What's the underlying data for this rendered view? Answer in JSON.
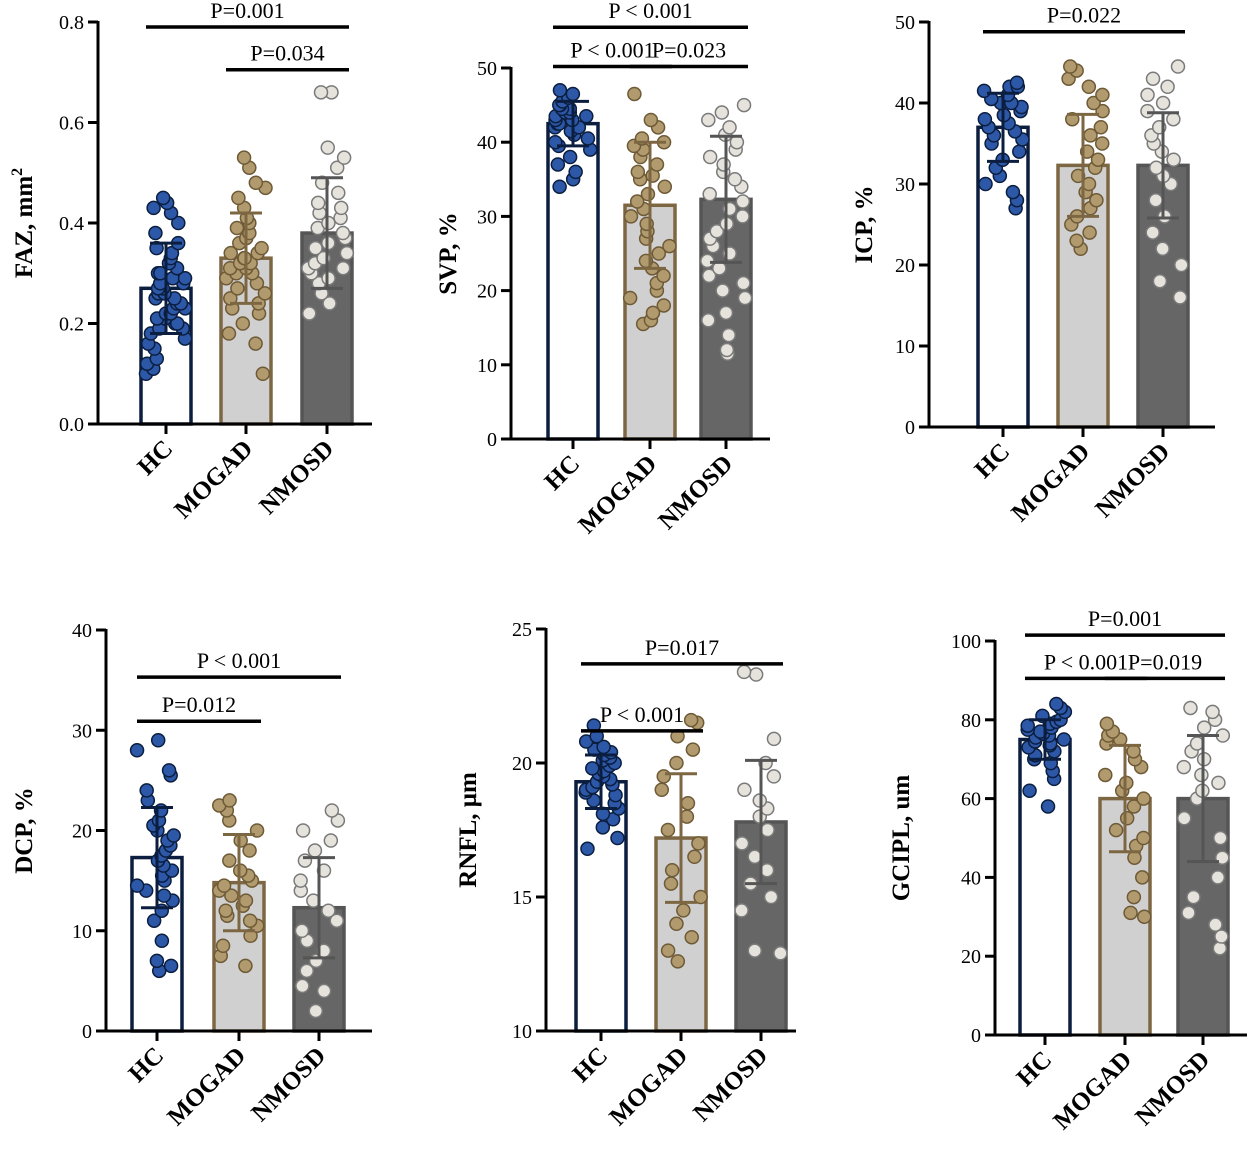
{
  "chart_data": [
    {
      "type": "bar",
      "ylabel": "FAZ, mm",
      "ylabel_sup": "2",
      "categories": [
        "HC",
        "MOGAD",
        "NMOSD"
      ],
      "ylim": [
        0,
        0.8
      ],
      "yticks": [
        0.0,
        0.2,
        0.4,
        0.6,
        0.8
      ],
      "ytick_labels": [
        "0.0",
        "0.2",
        "0.4",
        "0.6",
        "0.8"
      ],
      "means": [
        0.27,
        0.33,
        0.38
      ],
      "sd": [
        0.09,
        0.09,
        0.11
      ],
      "points": [
        [
          0.1,
          0.11,
          0.12,
          0.13,
          0.15,
          0.16,
          0.17,
          0.18,
          0.19,
          0.19,
          0.2,
          0.2,
          0.21,
          0.21,
          0.22,
          0.22,
          0.23,
          0.23,
          0.24,
          0.24,
          0.25,
          0.25,
          0.26,
          0.26,
          0.27,
          0.27,
          0.28,
          0.28,
          0.29,
          0.29,
          0.3,
          0.3,
          0.31,
          0.32,
          0.33,
          0.34,
          0.35,
          0.36,
          0.38,
          0.4,
          0.42,
          0.43,
          0.44,
          0.45
        ],
        [
          0.1,
          0.16,
          0.18,
          0.2,
          0.22,
          0.23,
          0.24,
          0.25,
          0.26,
          0.27,
          0.28,
          0.29,
          0.3,
          0.3,
          0.31,
          0.31,
          0.32,
          0.32,
          0.33,
          0.33,
          0.34,
          0.34,
          0.35,
          0.36,
          0.37,
          0.38,
          0.39,
          0.4,
          0.41,
          0.43,
          0.45,
          0.47,
          0.48,
          0.51,
          0.53
        ],
        [
          0.22,
          0.24,
          0.26,
          0.28,
          0.29,
          0.3,
          0.31,
          0.31,
          0.32,
          0.33,
          0.34,
          0.35,
          0.36,
          0.37,
          0.38,
          0.39,
          0.4,
          0.41,
          0.42,
          0.43,
          0.44,
          0.46,
          0.48,
          0.51,
          0.53,
          0.55,
          0.66,
          0.66
        ]
      ],
      "comparisons": [
        {
          "from": 0,
          "to": 2,
          "y": 0.79,
          "label": "P=0.001"
        },
        {
          "from": 1,
          "to": 2,
          "y": 0.705,
          "label": "P=0.034"
        }
      ]
    },
    {
      "type": "bar",
      "ylabel": "SVP, %",
      "categories": [
        "HC",
        "MOGAD",
        "NMOSD"
      ],
      "ylim": [
        0,
        50
      ],
      "yticks": [
        0,
        10,
        20,
        30,
        40,
        50
      ],
      "ytick_labels": [
        "0",
        "10",
        "20",
        "30",
        "40",
        "50"
      ],
      "means": [
        42.5,
        31.5,
        32.3
      ],
      "sd": [
        3.0,
        8.5,
        8.5
      ],
      "points": [
        [
          34.0,
          35.0,
          36.0,
          37.0,
          38.0,
          39.0,
          39.5,
          40.0,
          40.5,
          41.0,
          41.5,
          42.0,
          42.0,
          42.5,
          42.5,
          43.0,
          43.0,
          43.5,
          43.5,
          44.0,
          44.0,
          44.5,
          44.5,
          45.0,
          45.0,
          45.5,
          46.0,
          46.5,
          47.0
        ],
        [
          15.5,
          16.0,
          17.0,
          18.0,
          19.0,
          20.0,
          21.0,
          22.0,
          23.0,
          24.0,
          25.0,
          26.0,
          27.0,
          28.0,
          29.0,
          30.0,
          31.0,
          32.0,
          33.0,
          34.0,
          35.0,
          35.5,
          36.0,
          37.0,
          38.0,
          39.0,
          39.5,
          40.0,
          40.5,
          42.0,
          43.0,
          46.5
        ],
        [
          11.5,
          12.0,
          14.0,
          16.0,
          17.0,
          19.0,
          20.0,
          21.0,
          22.0,
          23.0,
          24.0,
          25.0,
          26.0,
          27.0,
          28.0,
          29.0,
          30.0,
          31.0,
          32.0,
          33.0,
          34.0,
          35.0,
          36.0,
          37.0,
          38.0,
          39.0,
          40.0,
          41.0,
          42.0,
          43.0,
          44.0,
          45.0
        ]
      ],
      "comparisons": [
        {
          "from": 0,
          "to": 2,
          "y": 55.5,
          "label": "P < 0.001"
        },
        {
          "from": 0,
          "to": 1,
          "y": 50.2,
          "label": "P < 0.001"
        },
        {
          "from": 1,
          "to": 2,
          "y": 50.2,
          "label": "P=0.023"
        }
      ]
    },
    {
      "type": "bar",
      "ylabel": "ICP, %",
      "categories": [
        "HC",
        "MOGAD",
        "NMOSD"
      ],
      "ylim": [
        0,
        50
      ],
      "yticks": [
        0,
        10,
        20,
        30,
        40,
        50
      ],
      "ytick_labels": [
        "0",
        "10",
        "20",
        "30",
        "40",
        "50"
      ],
      "means": [
        37.0,
        32.3,
        32.3
      ],
      "sd": [
        4.2,
        6.3,
        6.5
      ],
      "points": [
        [
          27.0,
          28.0,
          29.0,
          30.0,
          31.0,
          32.0,
          33.0,
          34.0,
          35.0,
          35.5,
          36.0,
          36.5,
          37.0,
          37.5,
          38.0,
          38.5,
          39.0,
          39.5,
          40.0,
          40.0,
          40.5,
          41.0,
          41.5,
          42.0,
          42.0,
          42.5
        ],
        [
          22.0,
          23.0,
          24.0,
          25.0,
          26.0,
          27.0,
          28.0,
          29.0,
          30.0,
          31.0,
          32.0,
          33.0,
          34.0,
          35.0,
          36.0,
          37.0,
          38.0,
          39.0,
          40.0,
          41.0,
          42.0,
          43.0,
          44.0,
          44.5
        ],
        [
          16.0,
          18.0,
          20.0,
          22.0,
          24.0,
          26.0,
          28.0,
          30.0,
          31.0,
          32.0,
          33.0,
          34.0,
          35.0,
          36.0,
          37.0,
          38.0,
          39.0,
          40.0,
          41.0,
          42.0,
          43.0,
          44.5
        ]
      ],
      "comparisons": [
        {
          "from": 0,
          "to": 2,
          "y": 48.8,
          "label": "P=0.022"
        }
      ]
    },
    {
      "type": "bar",
      "ylabel": "DCP, %",
      "categories": [
        "HC",
        "MOGAD",
        "NMOSD"
      ],
      "ylim": [
        0,
        40
      ],
      "yticks": [
        0,
        10,
        20,
        30,
        40
      ],
      "ytick_labels": [
        "0",
        "10",
        "20",
        "30",
        "40"
      ],
      "means": [
        17.3,
        14.8,
        12.3
      ],
      "sd": [
        5.0,
        4.8,
        5.0
      ],
      "points": [
        [
          6.0,
          6.5,
          7.0,
          9.0,
          11.0,
          12.0,
          13.0,
          13.5,
          14.0,
          14.5,
          15.0,
          15.5,
          16.0,
          16.5,
          17.0,
          17.5,
          18.0,
          18.5,
          19.0,
          19.5,
          20.0,
          20.5,
          21.0,
          22.0,
          23.0,
          24.0,
          25.5,
          26.0,
          28.0,
          29.0
        ],
        [
          6.5,
          7.5,
          8.5,
          9.5,
          10.5,
          11.0,
          11.5,
          12.0,
          12.5,
          13.0,
          13.5,
          14.0,
          14.5,
          15.0,
          15.5,
          16.0,
          17.0,
          18.0,
          19.0,
          20.0,
          21.0,
          22.0,
          22.5,
          23.0
        ],
        [
          2.0,
          4.0,
          4.5,
          6.0,
          7.0,
          8.0,
          9.0,
          10.0,
          11.0,
          12.0,
          13.0,
          14.0,
          15.0,
          16.0,
          17.0,
          18.0,
          19.0,
          20.0,
          21.0,
          22.0
        ]
      ],
      "comparisons": [
        {
          "from": 0,
          "to": 2,
          "y": 35.3,
          "label": "P < 0.001"
        },
        {
          "from": 0,
          "to": 1,
          "y": 30.9,
          "label": "P=0.012"
        }
      ]
    },
    {
      "type": "bar",
      "ylabel": "RNFL, μm",
      "categories": [
        "HC",
        "MOGAD",
        "NMOSD"
      ],
      "ylim": [
        10,
        25
      ],
      "yticks": [
        10,
        15,
        20,
        25
      ],
      "ytick_labels": [
        "10",
        "15",
        "20",
        "25"
      ],
      "means": [
        19.3,
        17.2,
        17.8
      ],
      "sd": [
        1.0,
        2.4,
        2.3
      ],
      "points": [
        [
          16.8,
          17.2,
          17.6,
          17.9,
          18.1,
          18.3,
          18.5,
          18.6,
          18.8,
          18.9,
          19.0,
          19.1,
          19.2,
          19.3,
          19.4,
          19.5,
          19.6,
          19.7,
          19.8,
          19.9,
          20.0,
          20.1,
          20.2,
          20.3,
          20.4,
          20.5,
          20.6,
          20.8,
          21.0,
          21.4
        ],
        [
          12.6,
          13.0,
          13.5,
          14.0,
          14.5,
          15.0,
          15.5,
          16.0,
          16.5,
          17.0,
          17.5,
          18.0,
          18.5,
          19.0,
          19.5,
          20.0,
          20.5,
          21.0,
          21.5,
          21.6
        ],
        [
          12.9,
          13.0,
          14.5,
          15.0,
          15.5,
          16.0,
          16.5,
          17.0,
          17.5,
          18.0,
          18.3,
          18.6,
          19.0,
          19.5,
          20.0,
          20.9,
          23.3,
          23.4
        ]
      ],
      "comparisons": [
        {
          "from": 0,
          "to": 2,
          "y": 23.7,
          "label": "P=0.017"
        },
        {
          "from": 0,
          "to": 1,
          "y": 21.2,
          "label": "P < 0.001"
        }
      ]
    },
    {
      "type": "bar",
      "ylabel": "GCIPL, um",
      "categories": [
        "HC",
        "MOGAD",
        "NMOSD"
      ],
      "ylim": [
        0,
        100
      ],
      "yticks": [
        0,
        20,
        40,
        60,
        80,
        100
      ],
      "ytick_labels": [
        "0",
        "20",
        "40",
        "60",
        "80",
        "100"
      ],
      "means": [
        75.0,
        60.0,
        60.0
      ],
      "sd": [
        5.0,
        13.5,
        16.0
      ],
      "points": [
        [
          58.0,
          62.0,
          65.0,
          67.0,
          69.0,
          70.0,
          71.0,
          72.0,
          73.0,
          73.5,
          74.0,
          74.5,
          75.0,
          75.5,
          76.0,
          76.5,
          77.0,
          77.5,
          78.0,
          78.5,
          79.0,
          79.5,
          80.0,
          81.0,
          82.0,
          83.0,
          84.0
        ],
        [
          30.0,
          31.0,
          35.0,
          40.0,
          45.0,
          48.0,
          50.0,
          52.0,
          55.0,
          58.0,
          60.0,
          62.0,
          64.0,
          66.0,
          68.0,
          70.0,
          72.0,
          74.0,
          75.0,
          76.0,
          77.0,
          79.0
        ],
        [
          22.0,
          25.0,
          28.0,
          31.0,
          35.0,
          40.0,
          45.0,
          50.0,
          55.0,
          60.0,
          62.0,
          64.0,
          66.0,
          68.0,
          70.0,
          72.0,
          74.0,
          76.0,
          78.0,
          80.0,
          82.0,
          83.0
        ]
      ],
      "comparisons": [
        {
          "from": 0,
          "to": 2,
          "y": 101.5,
          "label": "P=0.001"
        },
        {
          "from": 0,
          "to": 1,
          "y": 90.5,
          "label": "P < 0.001"
        },
        {
          "from": 1,
          "to": 2,
          "y": 90.5,
          "label": "P=0.019"
        }
      ]
    }
  ],
  "style": {
    "bar_fill": [
      "#ffffff",
      "#d0d0d0",
      "#666666"
    ],
    "bar_edge": [
      "#0b1e3f",
      "#7d6742",
      "#555555"
    ],
    "dot_fill": [
      "#2d58a8",
      "#b09a6e",
      "#e6e3dc"
    ],
    "dot_edge": [
      "#0b1e3f",
      "#6e5a36",
      "#7a7a7a"
    ],
    "axis_color": "#000000"
  }
}
